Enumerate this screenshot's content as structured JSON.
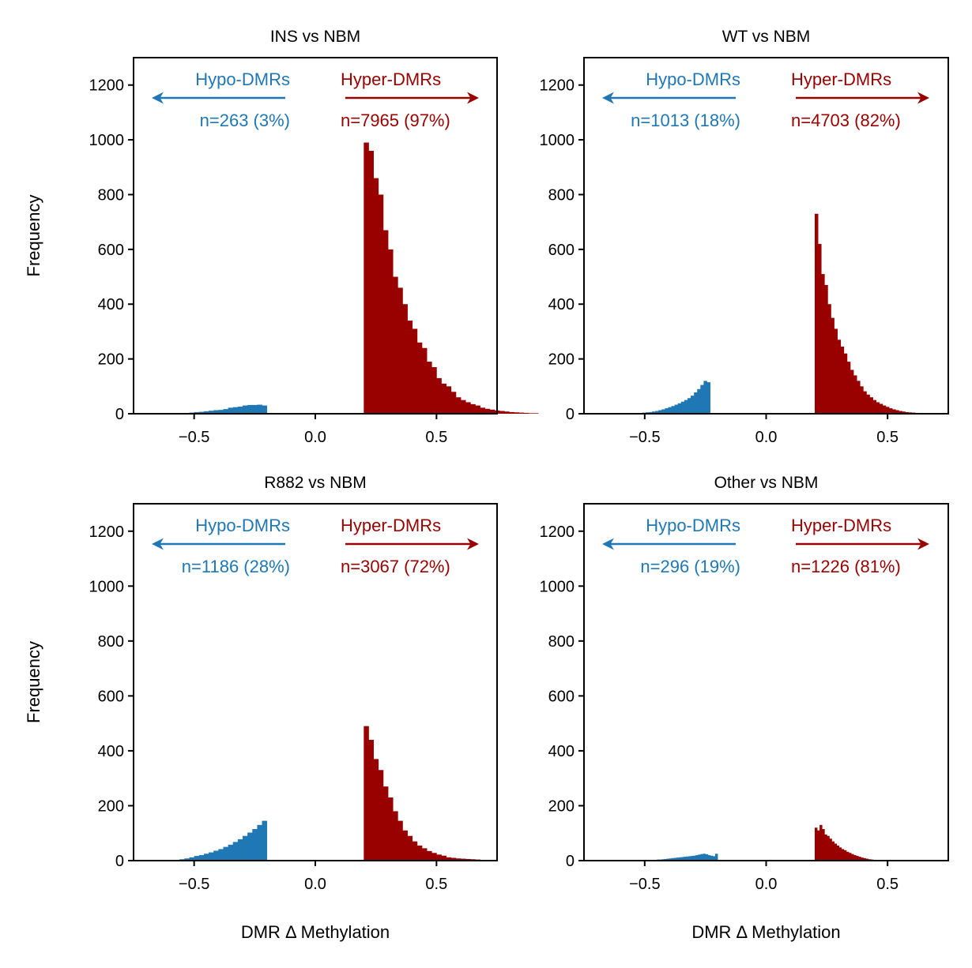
{
  "colors": {
    "hypo": "#1f77b4",
    "hyper": "#990000"
  },
  "figure": {
    "xlabel": "DMR Δ Methylation",
    "ylabel": "Frequency"
  },
  "chart_data": [
    {
      "type": "bar",
      "title": "INS vs NBM",
      "xlim": [
        -0.75,
        0.75
      ],
      "ylim": [
        0,
        1300
      ],
      "xticks": [
        -0.5,
        0.0,
        0.5
      ],
      "xtick_labels": [
        "−0.5",
        "0.0",
        "0.5"
      ],
      "yticks": [
        0,
        200,
        400,
        600,
        800,
        1000,
        1200
      ],
      "bin_width": 0.02,
      "hypo": {
        "label": "Hypo-DMRs",
        "count_label": "n=263 (3%)",
        "bins_start": -0.6,
        "values": [
          1,
          1,
          2,
          3,
          4,
          6,
          7,
          9,
          11,
          13,
          14,
          17,
          22,
          24,
          26,
          30,
          32,
          32,
          33,
          30
        ]
      },
      "hyper": {
        "label": "Hyper-DMRs",
        "count_label": "n=7965 (97%)",
        "bins_start": 0.2,
        "values": [
          990,
          960,
          860,
          800,
          670,
          600,
          500,
          460,
          400,
          340,
          310,
          260,
          240,
          190,
          170,
          130,
          110,
          100,
          80,
          60,
          50,
          42,
          35,
          30,
          22,
          18,
          15,
          12,
          10,
          8,
          6,
          5,
          4,
          3,
          2,
          2
        ]
      }
    },
    {
      "type": "bar",
      "title": "WT vs NBM",
      "xlim": [
        -0.75,
        0.75
      ],
      "ylim": [
        0,
        1300
      ],
      "xticks": [
        -0.5,
        0.0,
        0.5
      ],
      "xtick_labels": [
        "−0.5",
        "0.0",
        "0.5"
      ],
      "yticks": [
        0,
        200,
        400,
        600,
        800,
        1000,
        1200
      ],
      "bin_width": 0.0133,
      "hypo": {
        "label": "Hypo-DMRs",
        "count_label": "n=1013 (18%)",
        "bins_start": -0.55,
        "values": [
          1,
          2,
          3,
          4,
          5,
          6,
          8,
          10,
          13,
          16,
          20,
          24,
          28,
          33,
          38,
          44,
          50,
          57,
          66,
          78,
          90,
          105,
          120,
          115
        ]
      },
      "hyper": {
        "label": "Hyper-DMRs",
        "count_label": "n=4703 (82%)",
        "bins_start": 0.2,
        "values": [
          730,
          620,
          510,
          470,
          400,
          350,
          310,
          270,
          245,
          220,
          190,
          160,
          140,
          120,
          100,
          82,
          70,
          60,
          50,
          42,
          36,
          30,
          25,
          20,
          16,
          13,
          10,
          8,
          6,
          5,
          4,
          3
        ]
      }
    },
    {
      "type": "bar",
      "title": "R882 vs NBM",
      "xlim": [
        -0.75,
        0.75
      ],
      "ylim": [
        0,
        1300
      ],
      "xticks": [
        -0.5,
        0.0,
        0.5
      ],
      "xtick_labels": [
        "−0.5",
        "0.0",
        "0.5"
      ],
      "yticks": [
        0,
        200,
        400,
        600,
        800,
        1000,
        1200
      ],
      "bin_width": 0.02,
      "hypo": {
        "label": "Hypo-DMRs",
        "count_label": "n=1186 (28%)",
        "bins_start": -0.56,
        "values": [
          5,
          8,
          12,
          17,
          20,
          25,
          30,
          36,
          42,
          50,
          58,
          68,
          78,
          90,
          102,
          115,
          130,
          145
        ]
      },
      "hyper": {
        "label": "Hyper-DMRs",
        "count_label": "n=3067 (72%)",
        "bins_start": 0.2,
        "values": [
          490,
          440,
          370,
          330,
          270,
          230,
          180,
          145,
          110,
          90,
          70,
          55,
          45,
          35,
          28,
          22,
          18,
          12,
          10,
          8,
          7,
          6,
          5,
          4
        ]
      }
    },
    {
      "type": "bar",
      "title": "Other vs NBM",
      "xlim": [
        -0.75,
        0.75
      ],
      "ylim": [
        0,
        1300
      ],
      "xticks": [
        -0.5,
        0.0,
        0.5
      ],
      "xtick_labels": [
        "−0.5",
        "0.0",
        "0.5"
      ],
      "yticks": [
        0,
        200,
        400,
        600,
        800,
        1000,
        1200
      ],
      "bin_width": 0.01,
      "hypo": {
        "label": "Hypo-DMRs",
        "count_label": "n=296 (19%)",
        "bins_start": -0.5,
        "values": [
          1,
          1,
          2,
          2,
          3,
          4,
          4,
          5,
          6,
          7,
          8,
          9,
          10,
          11,
          12,
          13,
          14,
          15,
          16,
          17,
          18,
          20,
          22,
          24,
          25,
          23,
          20,
          18,
          16,
          25
        ]
      },
      "hyper": {
        "label": "Hyper-DMRs",
        "count_label": "n=1226 (81%)",
        "bins_start": 0.2,
        "values": [
          120,
          110,
          130,
          115,
          95,
          90,
          80,
          70,
          62,
          55,
          48,
          42,
          38,
          32,
          28,
          24,
          20,
          17,
          14,
          11,
          9,
          7,
          5,
          4,
          3,
          2
        ]
      }
    }
  ]
}
